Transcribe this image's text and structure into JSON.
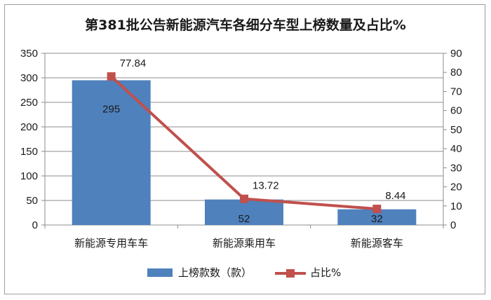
{
  "chart_data": {
    "type": "bar",
    "title": "第381批公告新能源汽车各细分车型上榜数量及占比%",
    "categories": [
      "新能源专用车车",
      "新能源乘用车",
      "新能源客车"
    ],
    "series": [
      {
        "name": "上榜款数（款）",
        "type": "bar",
        "axis": "left",
        "values": [
          295,
          52,
          32
        ],
        "color": "#4f81bd"
      },
      {
        "name": "占比%",
        "type": "line",
        "axis": "right",
        "values": [
          77.84,
          13.72,
          8.44
        ],
        "color": "#c0504d"
      }
    ],
    "ylim_left": [
      0,
      350
    ],
    "yticks_left": [
      0,
      50,
      100,
      150,
      200,
      250,
      300,
      350
    ],
    "ylim_right": [
      0,
      90
    ],
    "yticks_right": [
      0,
      10,
      20,
      30,
      40,
      50,
      60,
      70,
      80,
      90
    ],
    "grid": true,
    "legend": "bottom"
  }
}
